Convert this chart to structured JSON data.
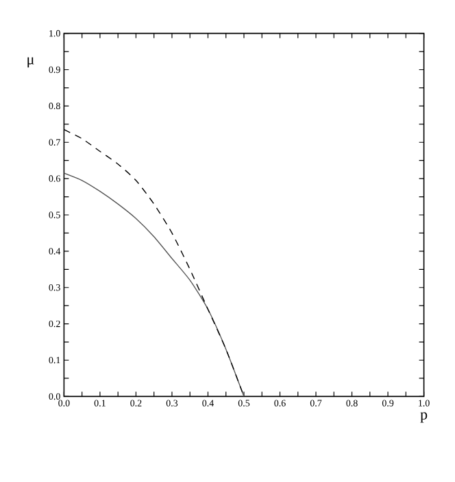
{
  "chart_data": {
    "type": "line",
    "xlabel": "p",
    "ylabel": "μ",
    "xlim": [
      0,
      1
    ],
    "ylim": [
      0,
      1
    ],
    "xticks": [
      {
        "value": 0,
        "label": "0.0"
      },
      {
        "value": 0.05,
        "label": null
      },
      {
        "value": 0.1,
        "label": "0.1"
      },
      {
        "value": 0.15,
        "label": null
      },
      {
        "value": 0.2,
        "label": "0.2"
      },
      {
        "value": 0.25,
        "label": null
      },
      {
        "value": 0.3,
        "label": "0.3"
      },
      {
        "value": 0.35,
        "label": null
      },
      {
        "value": 0.4,
        "label": "0.4"
      },
      {
        "value": 0.45,
        "label": null
      },
      {
        "value": 0.5,
        "label": "0.5"
      },
      {
        "value": 0.55,
        "label": null
      },
      {
        "value": 0.6,
        "label": "0.6"
      },
      {
        "value": 0.65,
        "label": null
      },
      {
        "value": 0.7,
        "label": "0.7"
      },
      {
        "value": 0.75,
        "label": null
      },
      {
        "value": 0.8,
        "label": "0.8"
      },
      {
        "value": 0.85,
        "label": null
      },
      {
        "value": 0.9,
        "label": "0.9"
      },
      {
        "value": 0.95,
        "label": null
      },
      {
        "value": 1,
        "label": "1.0"
      }
    ],
    "yticks": [
      {
        "value": 0,
        "label": "0.0"
      },
      {
        "value": 0.05,
        "label": null
      },
      {
        "value": 0.1,
        "label": "0.1"
      },
      {
        "value": 0.15,
        "label": null
      },
      {
        "value": 0.2,
        "label": "0.2"
      },
      {
        "value": 0.25,
        "label": null
      },
      {
        "value": 0.3,
        "label": "0.3"
      },
      {
        "value": 0.35,
        "label": null
      },
      {
        "value": 0.4,
        "label": "0.4"
      },
      {
        "value": 0.45,
        "label": null
      },
      {
        "value": 0.5,
        "label": "0.5"
      },
      {
        "value": 0.55,
        "label": null
      },
      {
        "value": 0.6,
        "label": "0.6"
      },
      {
        "value": 0.65,
        "label": null
      },
      {
        "value": 0.7,
        "label": "0.7"
      },
      {
        "value": 0.75,
        "label": null
      },
      {
        "value": 0.8,
        "label": "0.8"
      },
      {
        "value": 0.85,
        "label": null
      },
      {
        "value": 0.9,
        "label": "0.9"
      },
      {
        "value": 0.95,
        "label": null
      },
      {
        "value": 1,
        "label": "1.0"
      }
    ],
    "series": [
      {
        "color": "#555555",
        "line_style": "solid",
        "x": [
          0,
          0.05,
          0.1,
          0.15,
          0.2,
          0.25,
          0.3,
          0.35,
          0.4,
          0.45,
          0.5
        ],
        "values": [
          0.615,
          0.595,
          0.565,
          0.53,
          0.49,
          0.44,
          0.38,
          0.32,
          0.24,
          0.13,
          0.0
        ]
      },
      {
        "color": "#000000",
        "line_style": "dashed",
        "x": [
          0,
          0.05,
          0.1,
          0.15,
          0.2,
          0.25,
          0.3,
          0.35,
          0.4,
          0.45,
          0.5
        ],
        "values": [
          0.735,
          0.71,
          0.675,
          0.64,
          0.595,
          0.53,
          0.45,
          0.35,
          0.24,
          0.13,
          0.0
        ]
      }
    ]
  }
}
